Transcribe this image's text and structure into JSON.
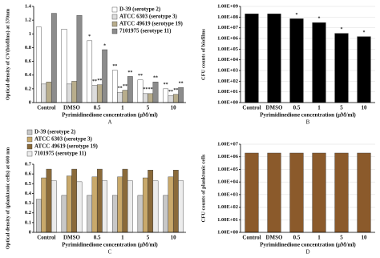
{
  "chart_data": [
    {
      "type": "bar",
      "ylabel": "Optical density of CV(biofilms) at 570nm",
      "xlabel": "Pyrimidinedione concentration (μM/ml)",
      "panel": "A",
      "categories": [
        "Control",
        "DMSO",
        "0.5",
        "1",
        "5",
        "10"
      ],
      "series": [
        {
          "name": "D-39 (serotype 2)",
          "color": "#ffffff",
          "values": [
            1.1,
            1.07,
            0.9,
            0.47,
            0.33,
            0.2
          ],
          "significance": [
            null,
            null,
            "*",
            "**",
            "**",
            "**"
          ]
        },
        {
          "name": "ATCC 6303 (serotype 3)",
          "color": "#dcdcdc",
          "values": [
            0.27,
            0.27,
            0.25,
            0.15,
            0.13,
            0.1
          ],
          "significance": [
            null,
            null,
            "**",
            "**",
            "**",
            "**"
          ]
        },
        {
          "name": "ATCC 49619 (serotype 19)",
          "color": "#b8ad8c",
          "values": [
            0.3,
            0.31,
            0.26,
            0.18,
            0.13,
            0.12
          ],
          "significance": [
            null,
            null,
            "**",
            "**",
            "**",
            "**"
          ]
        },
        {
          "name": "7101975 (serotype 11)",
          "color": "#8c8c8c",
          "values": [
            1.3,
            1.27,
            0.77,
            0.38,
            0.3,
            0.22
          ],
          "significance": [
            null,
            null,
            "*",
            "**",
            "**",
            "**"
          ]
        }
      ],
      "ylim": [
        0,
        1.4
      ],
      "yticks": [
        0,
        0.2,
        0.4,
        0.6,
        0.8,
        1,
        1.2,
        1.4
      ],
      "grid": false,
      "legend": "upper right"
    },
    {
      "type": "bar",
      "ylabel": "CFU counts of biofilms",
      "xlabel": "Pyrimidinedione concentration (μM/ml)",
      "panel": "B",
      "categories": [
        "Control",
        "DMSO",
        "0.5",
        "1",
        "5",
        "10"
      ],
      "values": [
        200000000,
        200000000,
        70000000,
        30000000,
        3000000,
        1500000
      ],
      "significance": [
        null,
        null,
        "*",
        "*",
        "*",
        "*"
      ],
      "color": "#000000",
      "log": true,
      "ylim": [
        1,
        1000000000
      ],
      "yticks": [
        {
          "value": 1,
          "label": "1.00E+00"
        },
        {
          "value": 10,
          "label": "1.00E+01"
        },
        {
          "value": 100,
          "label": "1.00E+02"
        },
        {
          "value": 1000,
          "label": "1.00E+03"
        },
        {
          "value": 10000,
          "label": "1.00E+04"
        },
        {
          "value": 100000,
          "label": "1.00E+05"
        },
        {
          "value": 1000000,
          "label": "1.00E+06"
        },
        {
          "value": 10000000,
          "label": "1.00E+07"
        },
        {
          "value": 100000000,
          "label": "1.00E+08"
        },
        {
          "value": 1000000000,
          "label": "1.00E+09"
        }
      ],
      "grid": true
    },
    {
      "type": "bar",
      "ylabel": "Optical density of (planktonic cells) at 600 nm",
      "xlabel": "Pyrimidinedione concentration (μM/ml)",
      "panel": "C",
      "categories": [
        "Control",
        "DMSO",
        "0.5",
        "1",
        "5",
        "10"
      ],
      "series": [
        {
          "name": "D-39 (serotype 2)",
          "color": "#c8c8c8",
          "values": [
            0.34,
            0.38,
            0.38,
            0.38,
            0.38,
            0.38
          ]
        },
        {
          "name": "ATCC 6303 (serotype 3)",
          "color": "#c9a96b",
          "values": [
            0.56,
            0.58,
            0.57,
            0.57,
            0.56,
            0.57
          ]
        },
        {
          "name": "ATCC 49619 (serotype 19)",
          "color": "#8a6a3a",
          "values": [
            0.65,
            0.65,
            0.65,
            0.65,
            0.64,
            0.64
          ]
        },
        {
          "name": "7101975 (serotype 11)",
          "color": "#ececec",
          "values": [
            0.53,
            0.52,
            0.53,
            0.53,
            0.53,
            0.53
          ]
        }
      ],
      "ylim": [
        0,
        0.7
      ],
      "yticks": [
        0,
        0.1,
        0.2,
        0.3,
        0.4,
        0.5,
        0.6,
        0.7
      ],
      "grid": false,
      "legend": "upper left"
    },
    {
      "type": "bar",
      "ylabel": "CFU counts of planktonic cells",
      "xlabel": "Pyrimidinedione concentration (μM/ml)",
      "panel": "D",
      "categories": [
        "Control",
        "DMSO",
        "0.5",
        "1",
        "5",
        "10"
      ],
      "values": [
        2000000,
        2000000,
        2000000,
        2000000,
        2000000,
        2000000
      ],
      "color": "#8b5a2b",
      "log": true,
      "ylim": [
        1,
        10000000
      ],
      "yticks": [
        {
          "value": 1,
          "label": "1.00E+00"
        },
        {
          "value": 10,
          "label": "1.00E+01"
        },
        {
          "value": 100,
          "label": "1.00E+02"
        },
        {
          "value": 1000,
          "label": "1.00E+03"
        },
        {
          "value": 10000,
          "label": "1.00E+04"
        },
        {
          "value": 100000,
          "label": "1.00E+05"
        },
        {
          "value": 1000000,
          "label": "1.00E+06"
        },
        {
          "value": 10000000,
          "label": "1.00E+07"
        }
      ],
      "grid": true
    }
  ]
}
